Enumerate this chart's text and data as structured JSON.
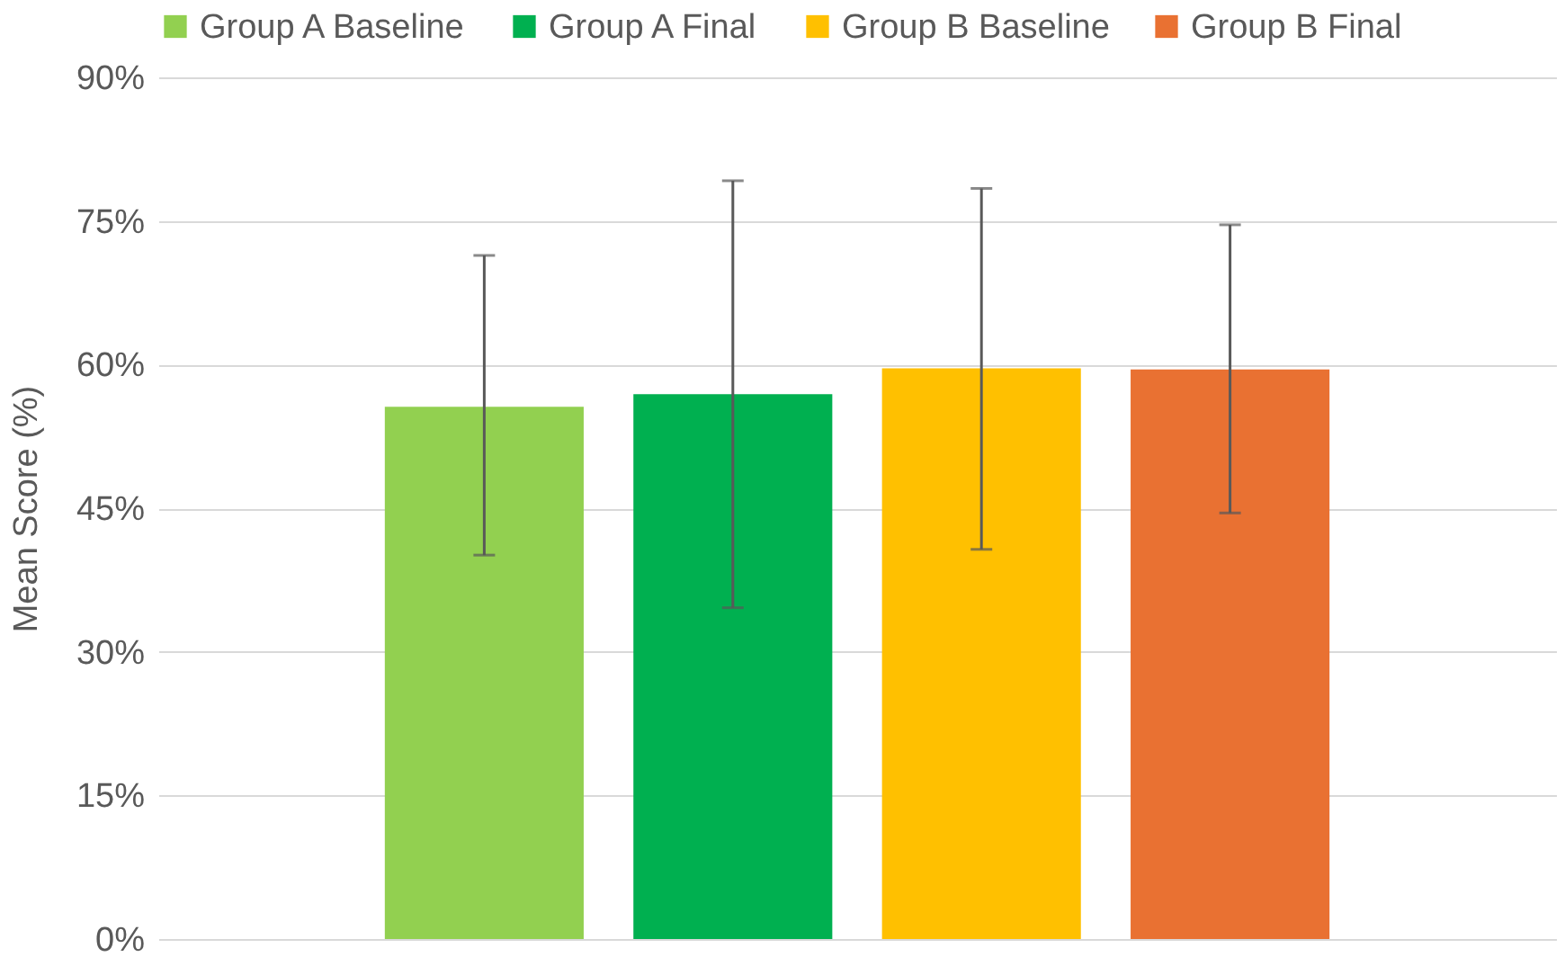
{
  "chart_data": {
    "type": "bar",
    "ylabel": "Mean Score (%)",
    "categories": [
      null
    ],
    "series": [
      {
        "name": "Group A Baseline",
        "color": "#92d050",
        "values": [
          55.6
        ],
        "errors": [
          [
            40.1,
            71.4
          ]
        ]
      },
      {
        "name": "Group A Final",
        "color": "#00b050",
        "values": [
          56.9
        ],
        "errors": [
          [
            34.6,
            79.2
          ]
        ]
      },
      {
        "name": "Group B Baseline",
        "color": "#ffc000",
        "values": [
          59.6
        ],
        "errors": [
          [
            40.7,
            78.4
          ]
        ]
      },
      {
        "name": "Group B Final",
        "color": "#e97132",
        "values": [
          59.5
        ],
        "errors": [
          [
            44.5,
            74.6
          ]
        ]
      }
    ],
    "ylim": [
      0,
      90
    ],
    "yticks": [
      {
        "value": 0,
        "label": "0%"
      },
      {
        "value": 15,
        "label": "15%"
      },
      {
        "value": 30,
        "label": "30%"
      },
      {
        "value": 45,
        "label": "45%"
      },
      {
        "value": 60,
        "label": "60%"
      },
      {
        "value": 75,
        "label": "75%"
      },
      {
        "value": 90,
        "label": "90%"
      }
    ],
    "grid": "y",
    "legend": "top",
    "tick_labels": "y"
  }
}
